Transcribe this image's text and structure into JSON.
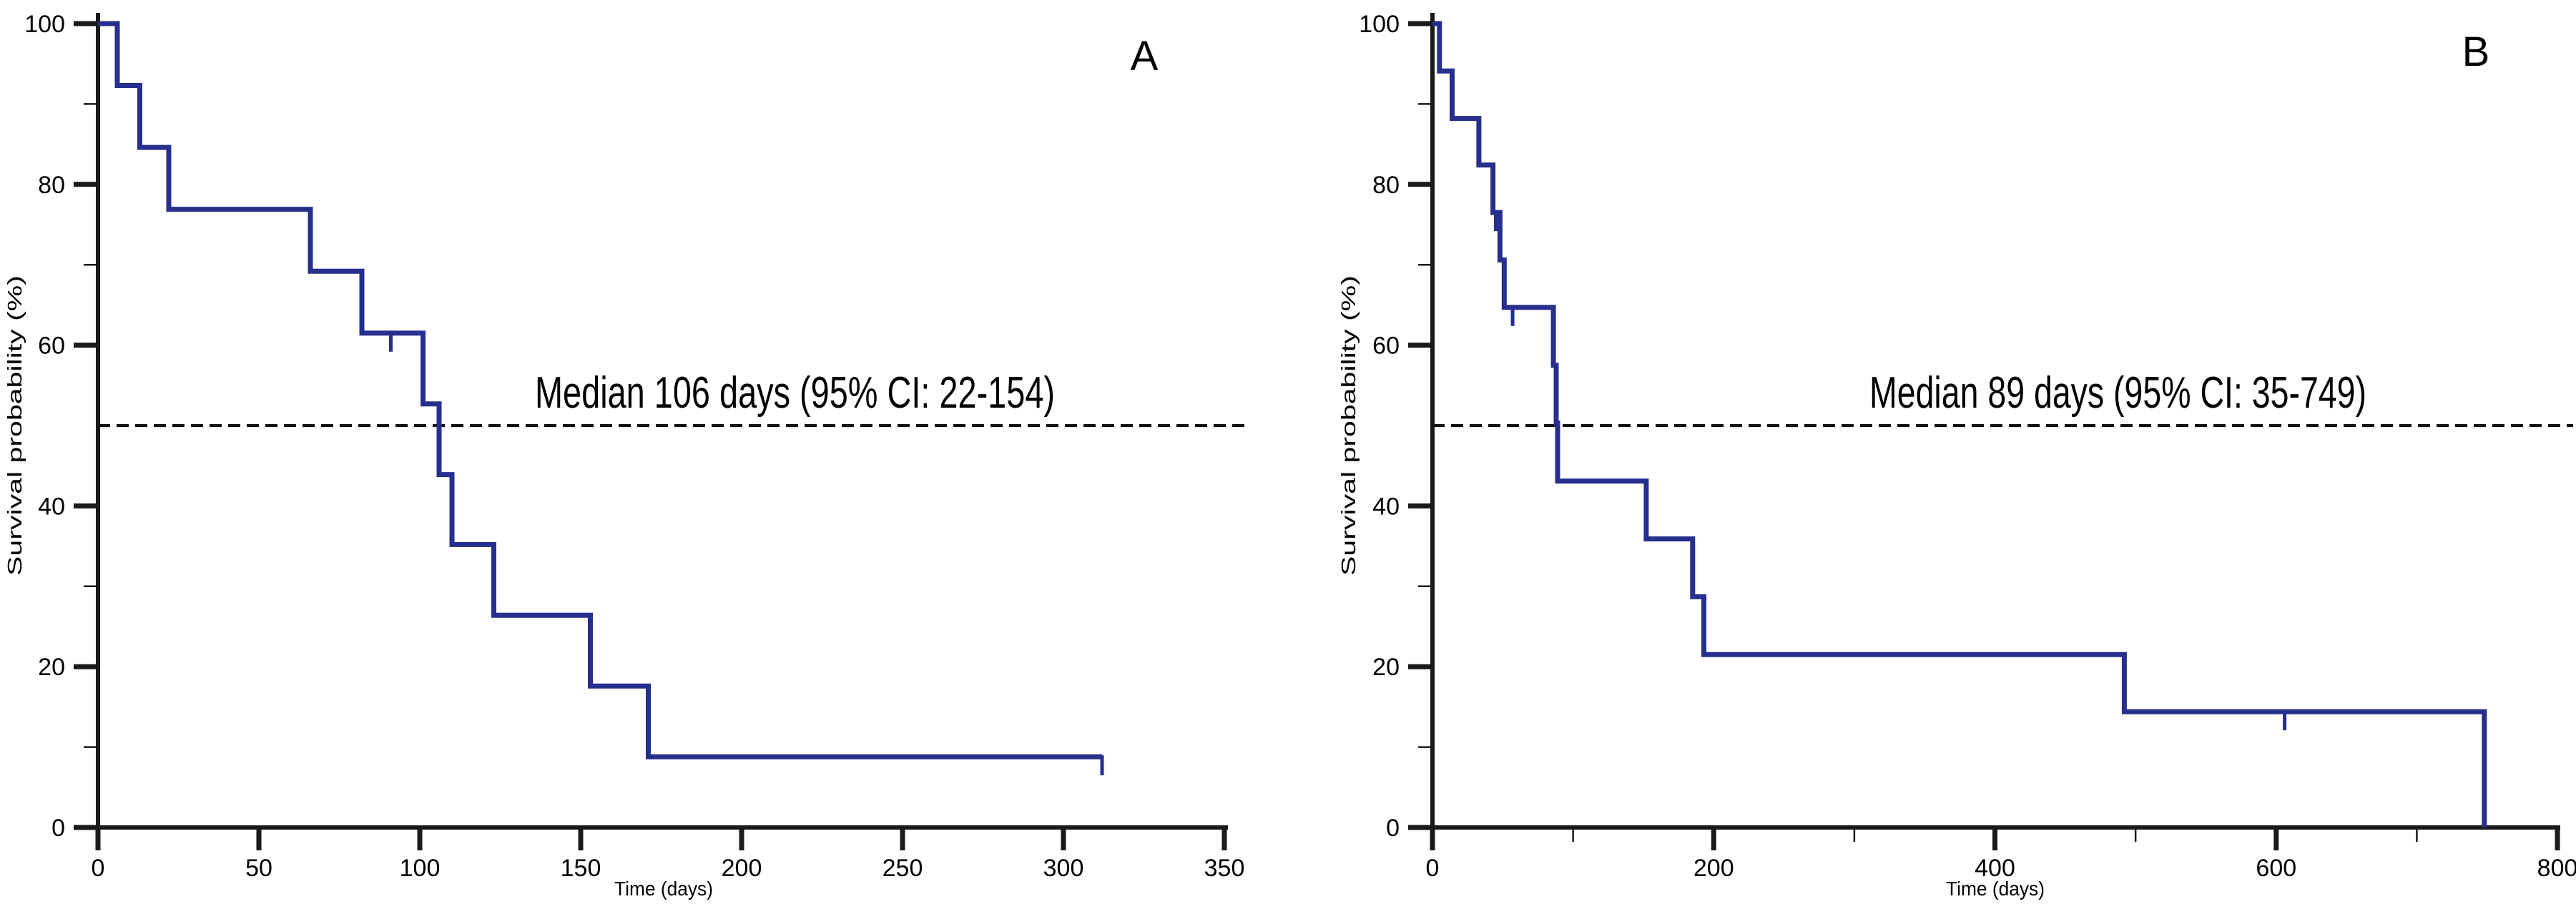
{
  "figure": {
    "background": "#ffffff",
    "description": "Two Kaplan-Meier overall survival curves, panels A and B"
  },
  "colors": {
    "curve": "#262f8e",
    "axis": "#1a1a1a",
    "text": "#000000",
    "median_dash": "#111111"
  },
  "chart_data": [
    {
      "type": "line",
      "subtype": "kaplan-meier-step",
      "panel_label": "A",
      "annotation": "Median 106 days (95% CI: 22-154)",
      "median_days": 106,
      "ci_95": "22-154",
      "xlabel": "Time (days)",
      "ylabel": "Survival probability (%)",
      "xlim": [
        0,
        350
      ],
      "ylim": [
        0,
        100
      ],
      "x_ticks": [
        0,
        50,
        100,
        150,
        200,
        250,
        300,
        350
      ],
      "x_minor_ticks": [],
      "y_ticks": [
        0,
        20,
        40,
        60,
        80,
        100
      ],
      "y_minor_ticks": [
        10,
        30,
        70,
        90
      ],
      "median_line_y": 50,
      "grid": false,
      "legend": "none",
      "steps": [
        [
          0,
          100
        ],
        [
          6,
          100
        ],
        [
          6,
          92.3
        ],
        [
          13,
          92.3
        ],
        [
          13,
          84.6
        ],
        [
          22,
          84.6
        ],
        [
          22,
          76.9
        ],
        [
          66,
          76.9
        ],
        [
          66,
          69.2
        ],
        [
          82,
          69.2
        ],
        [
          82,
          61.5
        ],
        [
          101,
          61.5
        ],
        [
          101,
          52.7
        ],
        [
          106,
          52.7
        ],
        [
          106,
          43.9
        ],
        [
          110,
          43.9
        ],
        [
          110,
          35.2
        ],
        [
          123,
          35.2
        ],
        [
          123,
          26.4
        ],
        [
          153,
          26.4
        ],
        [
          153,
          17.6
        ],
        [
          171,
          17.6
        ],
        [
          171,
          8.8
        ],
        [
          312,
          8.8
        ]
      ],
      "censor_marks": [
        [
          91,
          61.5
        ],
        [
          312,
          8.8
        ]
      ]
    },
    {
      "type": "line",
      "subtype": "kaplan-meier-step",
      "panel_label": "B",
      "annotation": "Median 89 days (95% CI: 35-749)",
      "median_days": 89,
      "ci_95": "35-749",
      "xlabel": "Time (days)",
      "ylabel": "Survival probability (%)",
      "xlim": [
        0,
        800
      ],
      "ylim": [
        0,
        100
      ],
      "x_ticks": [
        0,
        200,
        400,
        600,
        800
      ],
      "x_minor_ticks": [
        100,
        300,
        500,
        700
      ],
      "y_ticks": [
        0,
        20,
        40,
        60,
        80,
        100
      ],
      "y_minor_ticks": [
        10,
        30,
        70,
        90
      ],
      "median_line_y": 50,
      "grid": false,
      "legend": "none",
      "steps": [
        [
          0,
          100
        ],
        [
          5,
          100
        ],
        [
          5,
          94.1
        ],
        [
          14,
          94.1
        ],
        [
          14,
          88.2
        ],
        [
          33,
          88.2
        ],
        [
          33,
          82.4
        ],
        [
          43,
          82.4
        ],
        [
          43,
          76.5
        ],
        [
          48,
          76.5
        ],
        [
          48,
          70.6
        ],
        [
          51,
          70.6
        ],
        [
          51,
          64.7
        ],
        [
          86,
          64.7
        ],
        [
          86,
          57.5
        ],
        [
          88,
          57.5
        ],
        [
          88,
          50.3
        ],
        [
          89,
          50.3
        ],
        [
          89,
          43.1
        ],
        [
          152,
          43.1
        ],
        [
          152,
          35.9
        ],
        [
          185,
          35.9
        ],
        [
          185,
          28.7
        ],
        [
          193,
          28.7
        ],
        [
          193,
          21.5
        ],
        [
          492,
          21.5
        ],
        [
          492,
          14.4
        ],
        [
          748,
          14.4
        ],
        [
          748,
          0
        ]
      ],
      "censor_marks": [
        [
          45,
          76.5
        ],
        [
          57,
          64.7
        ],
        [
          606,
          14.4
        ]
      ]
    }
  ]
}
